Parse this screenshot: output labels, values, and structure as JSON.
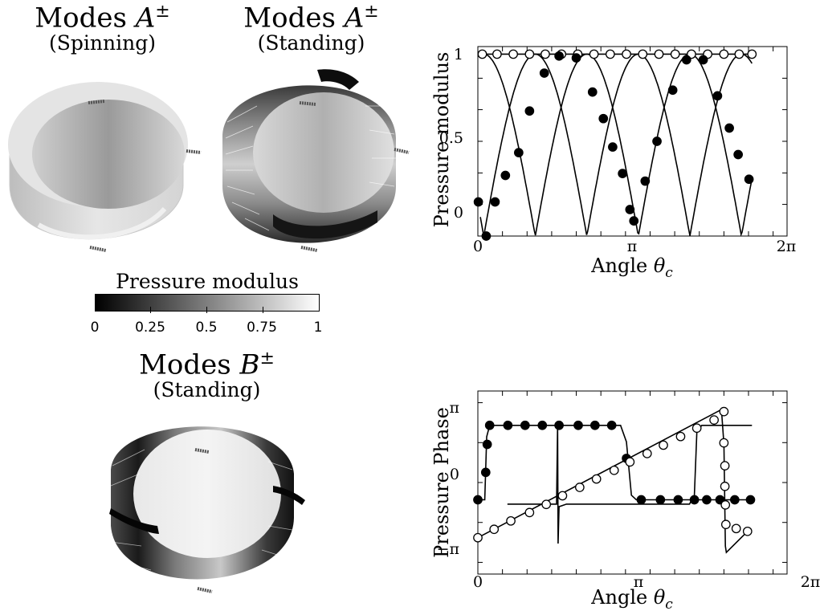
{
  "panels": {
    "a_spinning": {
      "title_prefix": "Modes ",
      "title_letter": "A",
      "title_sup": "±",
      "subtitle": "(Spinning)"
    },
    "a_standing": {
      "title_prefix": "Modes ",
      "title_letter": "A",
      "title_sup": "±",
      "subtitle": "(Standing)"
    },
    "b_standing": {
      "title_prefix": "Modes ",
      "title_letter": "B",
      "title_sup": "±",
      "subtitle": "(Standing)"
    }
  },
  "colorbar": {
    "label": "Pressure modulus",
    "ticks": [
      "0",
      "0.25",
      "0.5",
      "0.75",
      "1"
    ],
    "colors": {
      "low": "#000000",
      "high": "#ffffff"
    }
  },
  "chart_data": [
    {
      "type": "line",
      "ylabel": "Pressure modulus",
      "xlabel_text": "Angle ",
      "xlabel_symbol": "θ",
      "xlabel_sub": "c",
      "xticks": [
        "0",
        "π",
        "2π"
      ],
      "yticks": [
        "0",
        "0.5",
        "1"
      ],
      "xlim": [
        0,
        6.2832
      ],
      "ylim": [
        0,
        1
      ],
      "series": [
        {
          "marker": "open",
          "line": "spinning",
          "x": [
            0.09,
            0.39,
            0.72,
            1.05,
            1.37,
            1.7,
            2.03,
            2.36,
            2.69,
            3.02,
            3.35,
            3.68,
            4.01,
            4.34,
            4.67,
            5.0,
            5.31,
            5.57
          ],
          "y": [
            0.96,
            0.96,
            0.96,
            0.96,
            0.96,
            0.96,
            0.96,
            0.96,
            0.96,
            0.96,
            0.96,
            0.96,
            0.96,
            0.96,
            0.96,
            0.96,
            0.96,
            0.96
          ]
        },
        {
          "marker": "filled",
          "line": "standing",
          "x": [
            0.01,
            0.17,
            0.35,
            0.56,
            0.83,
            1.05,
            1.35,
            1.65,
            2.0,
            2.33,
            2.55,
            2.74,
            2.94,
            3.09,
            3.17,
            3.4,
            3.64,
            3.96,
            4.24,
            4.58,
            4.87,
            5.11,
            5.29,
            5.51
          ],
          "y": [
            0.18,
            0.0,
            0.18,
            0.32,
            0.44,
            0.66,
            0.86,
            0.95,
            0.94,
            0.76,
            0.62,
            0.47,
            0.33,
            0.14,
            0.08,
            0.29,
            0.5,
            0.77,
            0.93,
            0.93,
            0.74,
            0.57,
            0.43,
            0.3
          ]
        }
      ]
    },
    {
      "type": "line",
      "ylabel": "Pressure Phase",
      "xlabel_text": "Angle ",
      "xlabel_symbol": "θ",
      "xlabel_sub": "c",
      "xticks": [
        "0",
        "π",
        "2π"
      ],
      "yticks": [
        "π",
        "0",
        "−π"
      ],
      "xlim": [
        0,
        6.2832
      ],
      "ylim": [
        -3.6,
        3.6
      ],
      "series": [
        {
          "marker": "filled",
          "x": [
            0.0,
            0.16,
            0.19,
            0.24,
            0.61,
            0.96,
            1.31,
            1.65,
            2.04,
            2.38,
            2.72,
            3.02,
            3.32,
            3.71,
            4.07,
            4.4,
            4.65,
            4.92,
            5.22,
            5.54
          ],
          "y": [
            -0.68,
            0.4,
            1.5,
            2.25,
            2.25,
            2.25,
            2.25,
            2.25,
            2.25,
            2.25,
            2.25,
            0.95,
            -0.68,
            -0.68,
            -0.68,
            -0.68,
            -0.68,
            -0.68,
            -0.68,
            -0.68
          ]
        },
        {
          "marker": "open",
          "x": [
            0.0,
            0.33,
            0.67,
            1.05,
            1.39,
            1.72,
            2.07,
            2.41,
            2.77,
            3.09,
            3.44,
            3.77,
            4.12,
            4.45,
            4.8,
            5.0,
            5.0,
            5.02,
            5.02,
            5.03,
            5.04,
            5.25,
            5.48
          ],
          "y": [
            -2.17,
            -1.84,
            -1.51,
            -1.18,
            -0.86,
            -0.52,
            -0.19,
            0.14,
            0.48,
            0.81,
            1.14,
            1.47,
            1.81,
            2.14,
            2.46,
            2.79,
            1.56,
            0.66,
            -0.15,
            -0.88,
            -1.65,
            -1.81,
            -1.92
          ]
        }
      ]
    }
  ]
}
